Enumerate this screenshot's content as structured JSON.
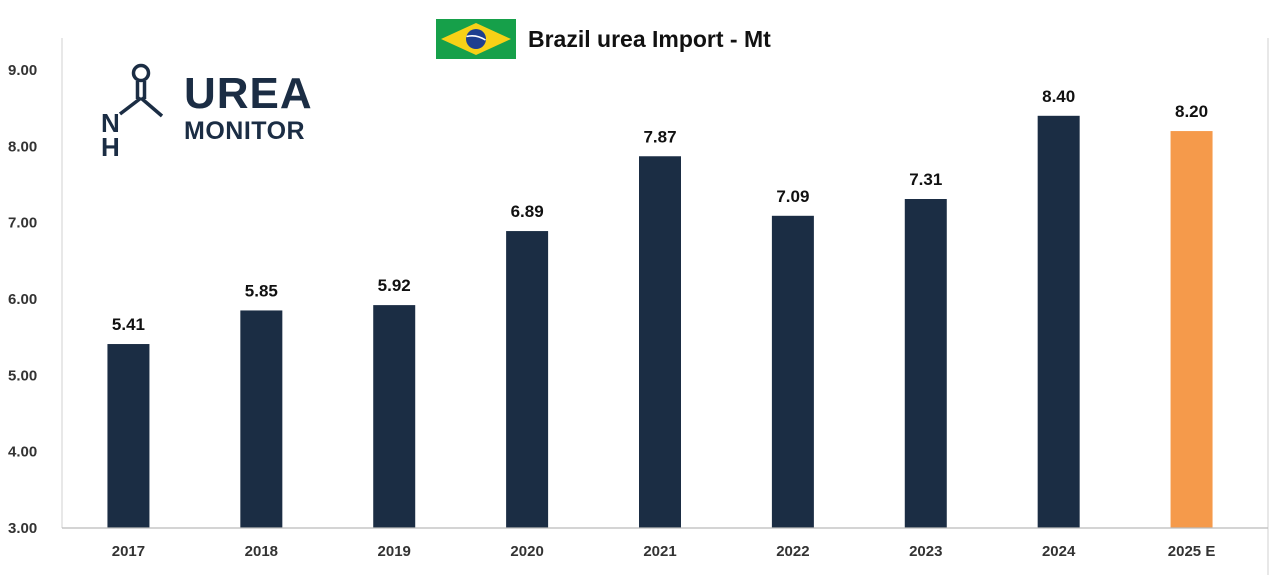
{
  "chart_data": {
    "type": "bar",
    "title": "Brazil urea Import - Mt",
    "xlabel": "",
    "ylabel": "",
    "categories": [
      "2017",
      "2018",
      "2019",
      "2020",
      "2021",
      "2022",
      "2023",
      "2024",
      "2025 E"
    ],
    "values": [
      5.41,
      5.85,
      5.92,
      6.89,
      7.87,
      7.09,
      7.31,
      8.4,
      8.2
    ],
    "data_labels": [
      "5.41",
      "5.85",
      "5.92",
      "6.89",
      "7.87",
      "7.09",
      "7.31",
      "8.40",
      "8.20"
    ],
    "ylim": [
      3,
      9
    ],
    "yticks": [
      "3.00",
      "4.00",
      "5.00",
      "6.00",
      "7.00",
      "8.00",
      "9.00"
    ],
    "grid": false,
    "bar_color": "#1b2d44",
    "estimate_bar_color": "#f59a4b",
    "estimate_index": 8
  },
  "logo": {
    "line1": "UREA",
    "line2": "MONITOR",
    "icon": "urea-molecule-icon",
    "color": "#1b2d44"
  },
  "flag": {
    "icon": "brazil-flag-icon",
    "green": "#16a04a",
    "yellow": "#f7d117",
    "blue": "#1d3f8f"
  }
}
